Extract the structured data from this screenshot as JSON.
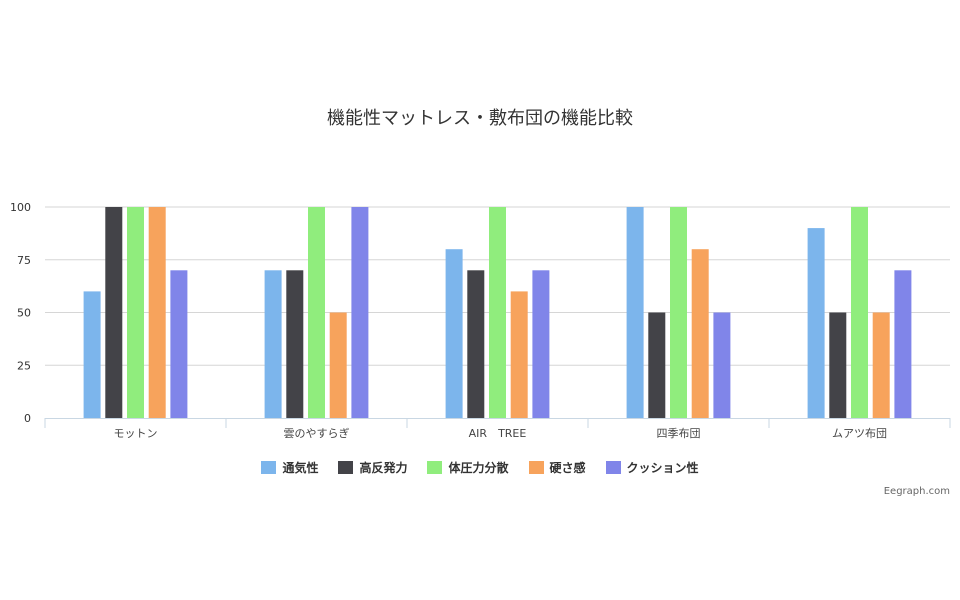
{
  "chart_data": {
    "type": "bar",
    "title": "機能性マットレス・敷布団の機能比較",
    "categories": [
      "モットン",
      "雲のやすらぎ",
      "AIR　TREE",
      "四季布団",
      "ムアツ布団"
    ],
    "ylim": [
      0,
      100
    ],
    "yticks": [
      "0",
      "25",
      "50",
      "75",
      "100"
    ],
    "grid": true,
    "legend_position": "bottom",
    "series": [
      {
        "name": "通気性",
        "color": "#7cb5ec",
        "values": [
          60,
          70,
          80,
          100,
          90
        ]
      },
      {
        "name": "高反発力",
        "color": "#434348",
        "values": [
          100,
          70,
          70,
          50,
          50
        ]
      },
      {
        "name": "体圧力分散",
        "color": "#90ed7d",
        "values": [
          100,
          100,
          100,
          100,
          100
        ]
      },
      {
        "name": "硬さ感",
        "color": "#f7a35c",
        "values": [
          100,
          50,
          60,
          80,
          50
        ]
      },
      {
        "name": "クッション性",
        "color": "#8085e9",
        "values": [
          70,
          100,
          70,
          50,
          70
        ]
      }
    ]
  },
  "credit": "Eegraph.com"
}
